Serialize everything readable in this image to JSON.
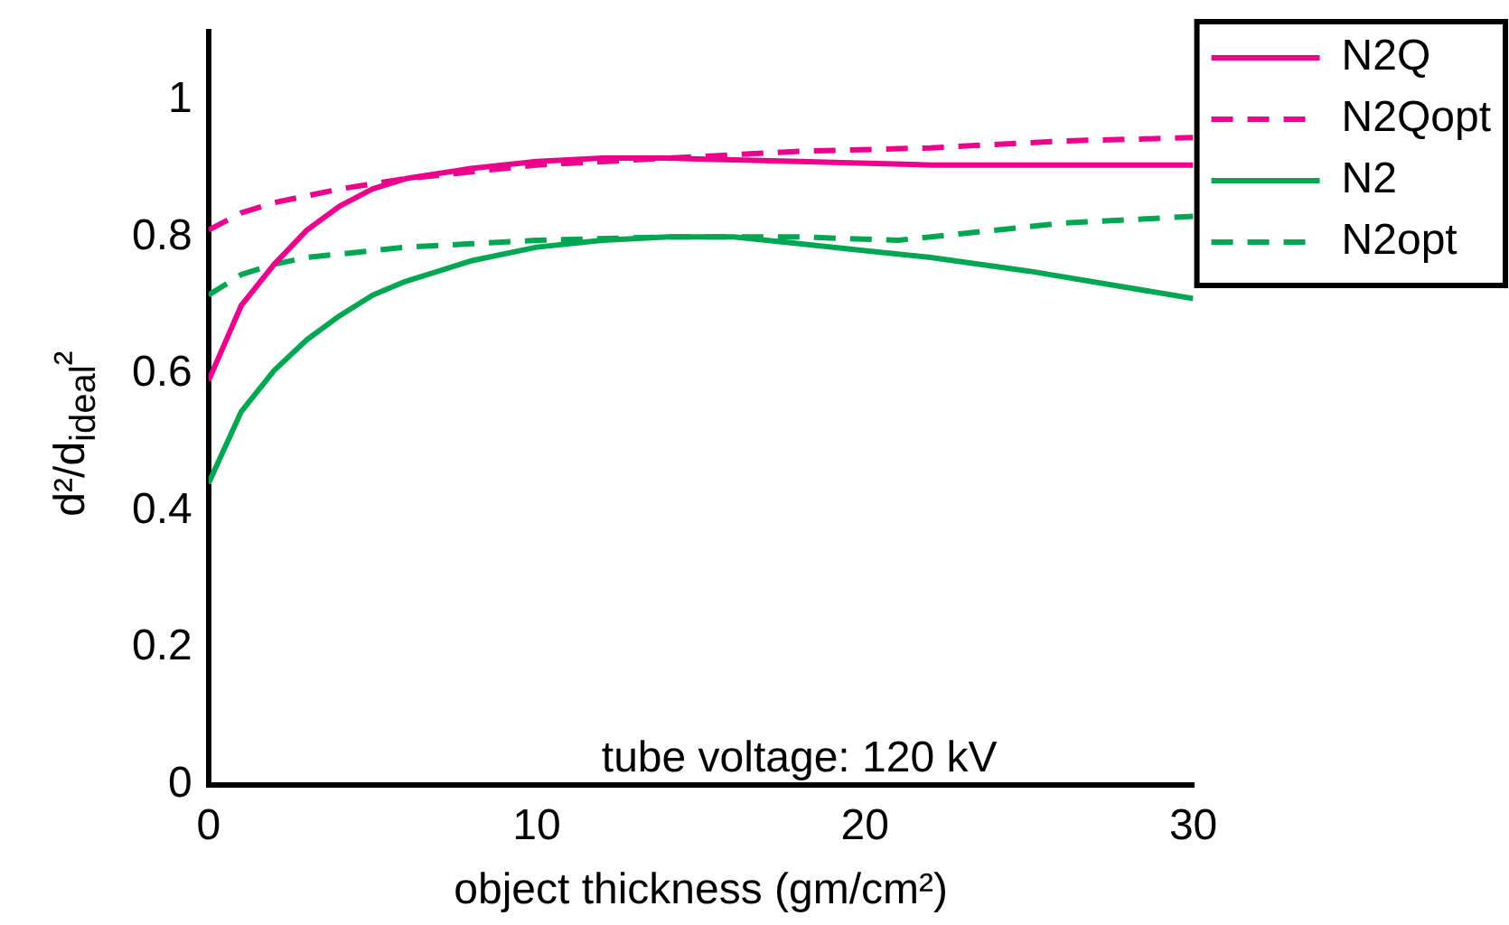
{
  "chart_data": {
    "type": "line",
    "xlabel": "object thickness (gm/cm²)",
    "ylabel": "d²/d$_{ideal}$²",
    "xlim": [
      0,
      30
    ],
    "xticks": [
      0,
      10,
      20,
      30
    ],
    "ylim": [
      0,
      1.1
    ],
    "yticks": [
      0,
      0.2,
      0.4,
      0.6,
      0.8,
      1
    ],
    "legend": "top right",
    "annotations": [
      "tube voltage: 120 kV"
    ],
    "series": [
      {
        "name": "N2Q",
        "color": "#ec008c",
        "line_style": "solid",
        "x": [
          0,
          1,
          2,
          3,
          4,
          5,
          6,
          8,
          10,
          12,
          14,
          18,
          22,
          26,
          30
        ],
        "values": [
          0.59,
          0.7,
          0.76,
          0.81,
          0.845,
          0.87,
          0.885,
          0.9,
          0.91,
          0.915,
          0.915,
          0.91,
          0.905,
          0.905,
          0.905
        ]
      },
      {
        "name": "N2Qopt",
        "color": "#ec008c",
        "line_style": "dashed",
        "x": [
          0,
          1,
          2,
          4,
          6,
          8,
          10,
          14,
          18,
          22,
          26,
          30
        ],
        "values": [
          0.81,
          0.835,
          0.85,
          0.87,
          0.885,
          0.895,
          0.905,
          0.915,
          0.925,
          0.93,
          0.94,
          0.945
        ]
      },
      {
        "name": "N2",
        "color": "#00a651",
        "line_style": "solid",
        "x": [
          0,
          1,
          2,
          3,
          4,
          5,
          6,
          8,
          10,
          12,
          14,
          16,
          18,
          20,
          22,
          25,
          30
        ],
        "values": [
          0.44,
          0.545,
          0.605,
          0.65,
          0.685,
          0.715,
          0.735,
          0.765,
          0.785,
          0.795,
          0.8,
          0.8,
          0.79,
          0.78,
          0.77,
          0.75,
          0.71
        ]
      },
      {
        "name": "N2opt",
        "color": "#00a651",
        "line_style": "dashed",
        "x": [
          0,
          1,
          2,
          3,
          4,
          6,
          8,
          10,
          14,
          18,
          21,
          23,
          26,
          30
        ],
        "values": [
          0.715,
          0.745,
          0.76,
          0.77,
          0.775,
          0.785,
          0.79,
          0.795,
          0.8,
          0.8,
          0.795,
          0.805,
          0.82,
          0.83
        ]
      }
    ]
  }
}
